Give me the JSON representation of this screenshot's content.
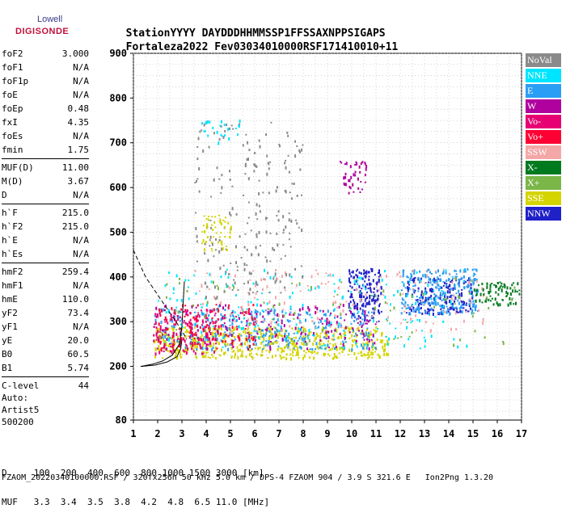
{
  "logo": {
    "lowell": "Lowell",
    "digisonde": "DIGISONDE"
  },
  "header": {
    "labels": [
      "Station",
      "YYYY DAY",
      "DDD",
      "HHMMSS",
      "P1",
      "FFS",
      "S",
      "AXN",
      "PPS",
      "IGA",
      "PS"
    ],
    "values": [
      "Fortaleza",
      "2022 Fev03",
      "034",
      "010000",
      "RSF",
      "",
      "1",
      "714",
      "100",
      "10+",
      "11"
    ]
  },
  "params": [
    {
      "group": [
        {
          "name": "foF2",
          "value": "3.000"
        },
        {
          "name": "foF1",
          "value": "N/A"
        },
        {
          "name": "foF1p",
          "value": "N/A"
        },
        {
          "name": "foE",
          "value": "N/A"
        },
        {
          "name": "foEp",
          "value": "0.48"
        },
        {
          "name": "fxI",
          "value": "4.35"
        },
        {
          "name": "foEs",
          "value": "N/A"
        },
        {
          "name": "fmin",
          "value": "1.75"
        }
      ]
    },
    {
      "group": [
        {
          "name": "MUF(D)",
          "value": "11.00"
        },
        {
          "name": "M(D)",
          "value": "3.67"
        },
        {
          "name": "D",
          "value": "N/A"
        }
      ]
    },
    {
      "group": [
        {
          "name": "h`F",
          "value": "215.0"
        },
        {
          "name": "h`F2",
          "value": "215.0"
        },
        {
          "name": "h`E",
          "value": "N/A"
        },
        {
          "name": "h`Es",
          "value": "N/A"
        }
      ]
    },
    {
      "group": [
        {
          "name": "hmF2",
          "value": "259.4"
        },
        {
          "name": "hmF1",
          "value": "N/A"
        },
        {
          "name": "hmE",
          "value": "110.0"
        },
        {
          "name": "yF2",
          "value": "73.4"
        },
        {
          "name": "yF1",
          "value": "N/A"
        },
        {
          "name": "yE",
          "value": "20.0"
        },
        {
          "name": "B0",
          "value": "60.5"
        },
        {
          "name": "B1",
          "value": "5.74"
        }
      ]
    },
    {
      "group": [
        {
          "name": "C-level",
          "value": "44"
        }
      ]
    }
  ],
  "auto": {
    "line1": "Auto:",
    "line2": "Artist5",
    "line3": "500200"
  },
  "bottom": {
    "d_line": "D     100  200  400  600  800 1000 1500 3000 [km]",
    "muf_line": "MUF   3.3  3.4  3.5  3.8  4.2  4.8  6.5 11.0 [MHz]",
    "footer": "FZAOM_20220340100000.RSF / 320fx256h 50 kHz 5.0 km / DPS-4 FZAOM 904 / 3.9 S 321.6 E   Ion2Png 1.3.20"
  },
  "legend": [
    {
      "label": "NoVal",
      "color": "#8a8a8a"
    },
    {
      "label": "NNE",
      "color": "#00e5ff"
    },
    {
      "label": "E",
      "color": "#2a9df4"
    },
    {
      "label": "W",
      "color": "#b0009e"
    },
    {
      "label": "Vo-",
      "color": "#e60073"
    },
    {
      "label": "Vo+",
      "color": "#ff0033"
    },
    {
      "label": "SSW",
      "color": "#f4a7a7"
    },
    {
      "label": "X-",
      "color": "#007a1f"
    },
    {
      "label": "X+",
      "color": "#7ab648"
    },
    {
      "label": "SSE",
      "color": "#d4d400"
    },
    {
      "label": "NNW",
      "color": "#2020c8"
    }
  ],
  "chart_data": {
    "type": "scatter",
    "title": "",
    "xlabel": "",
    "ylabel": "",
    "xlim": [
      1,
      17
    ],
    "ylim": [
      80,
      900
    ],
    "xticks": [
      1,
      2,
      3,
      4,
      5,
      6,
      7,
      8,
      9,
      10,
      11,
      12,
      13,
      14,
      15,
      16,
      17
    ],
    "yticks": [
      80,
      200,
      300,
      400,
      500,
      600,
      700,
      800,
      900
    ],
    "grid": "dotted",
    "legend_placement": "right",
    "clusters": [
      {
        "name": "SSE",
        "color": "#d4d400",
        "x_range": [
          1.8,
          11.5
        ],
        "y_range": [
          220,
          290
        ],
        "count": 600
      },
      {
        "name": "NNW",
        "color": "#2020c8",
        "x_range": [
          9.8,
          11.2
        ],
        "y_range": [
          300,
          420
        ],
        "count": 160
      },
      {
        "name": "NNW",
        "color": "#2020c8",
        "x_range": [
          12.2,
          15.0
        ],
        "y_range": [
          320,
          400
        ],
        "count": 180
      },
      {
        "name": "E",
        "color": "#2a9df4",
        "x_range": [
          1.8,
          11.0
        ],
        "y_range": [
          240,
          330
        ],
        "count": 300
      },
      {
        "name": "E",
        "color": "#2a9df4",
        "x_range": [
          12.0,
          15.2
        ],
        "y_range": [
          320,
          420
        ],
        "count": 220
      },
      {
        "name": "NNE",
        "color": "#00e5ff",
        "x_range": [
          2.0,
          15.0
        ],
        "y_range": [
          240,
          420
        ],
        "count": 220
      },
      {
        "name": "W",
        "color": "#b0009e",
        "x_range": [
          1.8,
          11.0
        ],
        "y_range": [
          240,
          340
        ],
        "count": 180
      },
      {
        "name": "Vo-",
        "color": "#e60073",
        "x_range": [
          1.8,
          4.5
        ],
        "y_range": [
          230,
          330
        ],
        "count": 150
      },
      {
        "name": "Vo+",
        "color": "#ff0033",
        "x_range": [
          2.0,
          6.0
        ],
        "y_range": [
          240,
          340
        ],
        "count": 120
      },
      {
        "name": "SSW",
        "color": "#f4a7a7",
        "x_range": [
          3.5,
          15.5
        ],
        "y_range": [
          280,
          420
        ],
        "count": 160
      },
      {
        "name": "X-",
        "color": "#007a1f",
        "x_range": [
          15.0,
          16.9
        ],
        "y_range": [
          340,
          390
        ],
        "count": 80
      },
      {
        "name": "X+",
        "color": "#7ab648",
        "x_range": [
          2.0,
          16.9
        ],
        "y_range": [
          250,
          400
        ],
        "count": 90
      },
      {
        "name": "NoVal",
        "color": "#8a8a8a",
        "x_range": [
          3.5,
          8.0
        ],
        "y_range": [
          350,
          750
        ],
        "count": 220
      },
      {
        "name": "SSE",
        "color": "#d4d400",
        "x_range": [
          3.8,
          5.0
        ],
        "y_range": [
          460,
          540
        ],
        "count": 50
      },
      {
        "name": "NNE",
        "color": "#00e5ff",
        "x_range": [
          3.8,
          5.5
        ],
        "y_range": [
          700,
          760
        ],
        "count": 25
      },
      {
        "name": "W",
        "color": "#b0009e",
        "x_range": [
          9.5,
          10.6
        ],
        "y_range": [
          590,
          660
        ],
        "count": 40
      }
    ],
    "traces": [
      {
        "name": "dashed-profile",
        "style": "dashed",
        "points": [
          [
            1,
            460
          ],
          [
            1.5,
            400
          ],
          [
            2.0,
            360
          ],
          [
            2.5,
            320
          ],
          [
            3.0,
            280
          ],
          [
            3.2,
            260
          ]
        ]
      },
      {
        "name": "virtual-height-fit",
        "style": "solid",
        "points": [
          [
            1.3,
            200
          ],
          [
            1.8,
            205
          ],
          [
            2.2,
            212
          ],
          [
            2.6,
            225
          ],
          [
            2.9,
            250
          ],
          [
            3.0,
            290
          ],
          [
            3.05,
            340
          ],
          [
            3.1,
            390
          ]
        ]
      },
      {
        "name": "true-height-fit",
        "style": "solid",
        "points": [
          [
            1.3,
            200
          ],
          [
            1.9,
            203
          ],
          [
            2.4,
            210
          ],
          [
            2.8,
            222
          ],
          [
            2.95,
            240
          ],
          [
            3.0,
            260
          ]
        ]
      }
    ]
  }
}
